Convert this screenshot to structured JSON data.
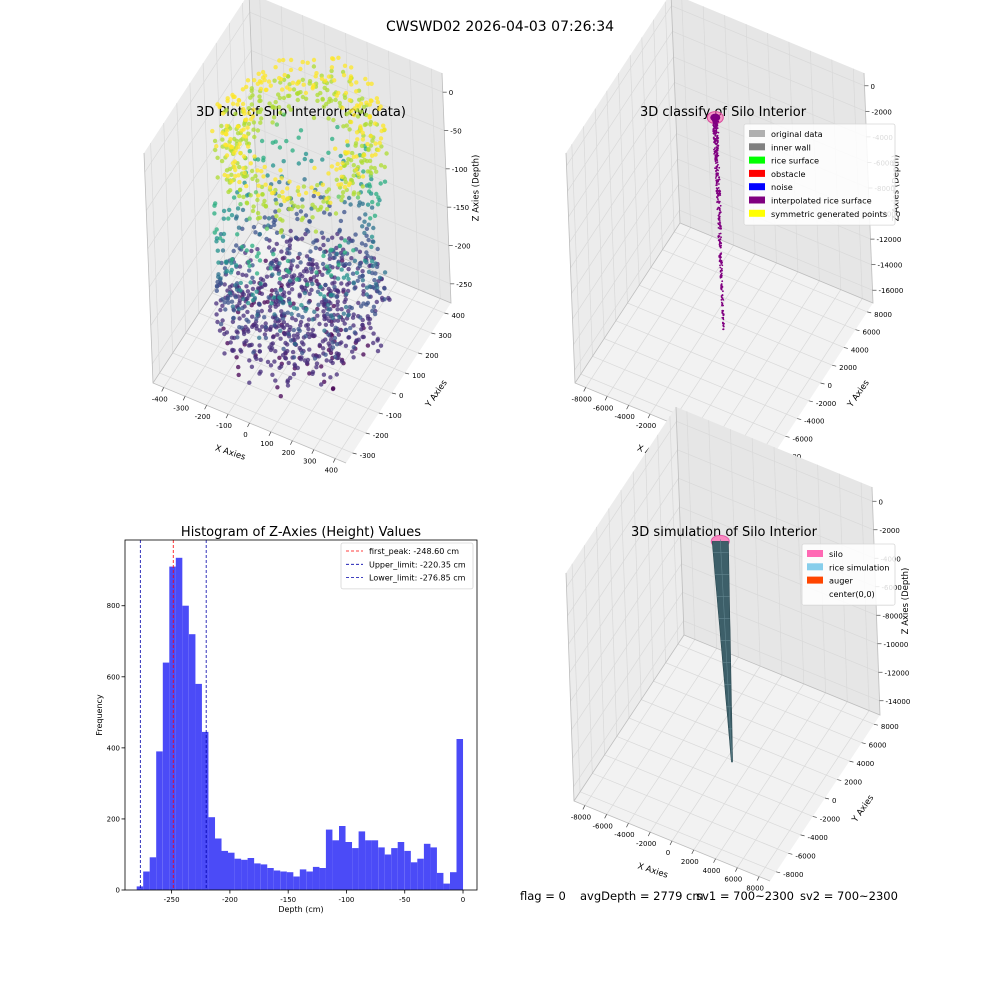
{
  "suptitle": "CWSWD02 2026-04-03 07:26:34",
  "footer": {
    "flag": "flag = 0",
    "avg_depth": "avgDepth = 2779 cm",
    "sv1": "sv1 = 700~2300",
    "sv2": "sv2 = 700~2300"
  },
  "colors": {
    "histogram_bar": "#4b4bf7",
    "first_peak_line": "#ff0000",
    "limit_line": "#0000aa",
    "pane": "#f2f2f2",
    "grid": "#dcdcdc"
  },
  "chart_data": [
    {
      "id": "raw",
      "type": "scatter3d",
      "title": "3D Plot of Silo Interior(row data)",
      "xlabel": "X Axies",
      "ylabel": "Y Axies",
      "zlabel": "Z Axies (Depth)",
      "x_ticks": [
        "-400",
        "-300",
        "-200",
        "-100",
        "0",
        "100",
        "200",
        "300",
        "400"
      ],
      "y_ticks": [
        "-300",
        "-200",
        "-100",
        "0",
        "100",
        "200",
        "300",
        "400"
      ],
      "z_ticks": [
        "0",
        "-50",
        "-100",
        "-150",
        "-200",
        "-250"
      ],
      "xlim": [
        -450,
        420
      ],
      "ylim": [
        -350,
        450
      ],
      "zlim": [
        -280,
        5
      ],
      "colormap": "viridis",
      "grid": true
    },
    {
      "id": "classify",
      "type": "scatter3d",
      "title": "3D classify of Silo Interior",
      "xlabel": "X Axies",
      "ylabel": "Y Axies",
      "zlabel": "Z Axies (Depth)",
      "x_ticks": [
        "-8000",
        "-6000",
        "-4000",
        "-2000",
        "0",
        "2000",
        "4000",
        "6000",
        "8000"
      ],
      "y_ticks": [
        "-8000",
        "-6000",
        "-4000",
        "-2000",
        "0",
        "2000",
        "4000",
        "6000",
        "8000"
      ],
      "z_ticks": [
        "0",
        "-2000",
        "-4000",
        "-6000",
        "-8000",
        "-10000",
        "-12000",
        "-14000",
        "-16000"
      ],
      "xlim": [
        -9000,
        9000
      ],
      "ylim": [
        -9000,
        9000
      ],
      "zlim": [
        -17000,
        500
      ],
      "legend_position": "upper right",
      "legend": [
        {
          "label": "original data",
          "color": "#b0b0b0"
        },
        {
          "label": "inner wall",
          "color": "#808080"
        },
        {
          "label": "rice surface",
          "color": "#00ff00"
        },
        {
          "label": "obstacle",
          "color": "#ff0000"
        },
        {
          "label": "noise",
          "color": "#0000ff"
        },
        {
          "label": "interpolated rice surface",
          "color": "#800080"
        },
        {
          "label": "symmetric generated points",
          "color": "#ffff00"
        }
      ],
      "grid": true
    },
    {
      "id": "hist",
      "type": "histogram",
      "title": "Histogram of Z-Axies (Height) Values",
      "xlabel": "Depth (cm)",
      "ylabel": "Frequency",
      "x_ticks": [
        "-250",
        "-200",
        "-150",
        "-100",
        "-50",
        "0"
      ],
      "y_ticks": [
        "0",
        "200",
        "400",
        "600",
        "800"
      ],
      "xlim": [
        -290,
        12
      ],
      "ylim": [
        0,
        985
      ],
      "bin_start": -280,
      "bin_width": 5.6,
      "counts": [
        10,
        52,
        92,
        390,
        640,
        910,
        935,
        800,
        720,
        580,
        445,
        205,
        145,
        110,
        105,
        88,
        85,
        90,
        75,
        72,
        62,
        55,
        52,
        50,
        38,
        58,
        52,
        65,
        62,
        170,
        140,
        180,
        135,
        118,
        165,
        140,
        140,
        120,
        100,
        118,
        135,
        110,
        78,
        88,
        130,
        120,
        48,
        18,
        50,
        425
      ],
      "vlines": [
        {
          "label": "first_peak: -248.60 cm",
          "x": -248.6,
          "color": "#ff0000"
        },
        {
          "label": "Upper_limit: -220.35 cm",
          "x": -220.35,
          "color": "#0000aa"
        },
        {
          "label": "Lower_limit: -276.85 cm",
          "x": -276.85,
          "color": "#0000aa"
        }
      ],
      "legend_position": "upper right",
      "grid": false
    },
    {
      "id": "sim",
      "type": "surface3d",
      "title": "3D simulation of Silo Interior",
      "xlabel": "X Axies",
      "ylabel": "Y Axies",
      "zlabel": "Z Axies (Depth)",
      "x_ticks": [
        "-8000",
        "-6000",
        "-4000",
        "-2000",
        "0",
        "2000",
        "4000",
        "6000",
        "8000"
      ],
      "y_ticks": [
        "-8000",
        "-6000",
        "-4000",
        "-2000",
        "0",
        "2000",
        "4000",
        "6000",
        "8000"
      ],
      "z_ticks": [
        "0",
        "-2000",
        "-4000",
        "-6000",
        "-8000",
        "-10000",
        "-12000",
        "-14000"
      ],
      "xlim": [
        -9000,
        9000
      ],
      "ylim": [
        -9000,
        9000
      ],
      "zlim": [
        -15000,
        500
      ],
      "legend_position": "upper right",
      "legend": [
        {
          "label": "silo",
          "color": "#ff69b4"
        },
        {
          "label": "rice simulation",
          "color": "#87ceeb"
        },
        {
          "label": "auger",
          "color": "#ff4500"
        },
        {
          "label": "center(0,0)",
          "color": "#ffffff"
        }
      ],
      "grid": true
    }
  ]
}
